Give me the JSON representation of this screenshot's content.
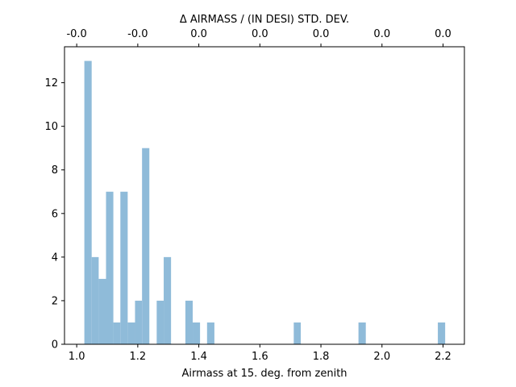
{
  "chart_data": {
    "type": "bar",
    "subtype": "histogram",
    "bar_color": "#8fbbd9",
    "xlabel": "Airmass at 15. deg. from zenith",
    "top_xlabel": "Δ AIRMASS / (IN DESI) STD. DEV.",
    "xlim": [
      0.96,
      2.27
    ],
    "ylim": [
      0,
      13.65
    ],
    "x_ticks": [
      1.0,
      1.2,
      1.4,
      1.6,
      1.8,
      2.0,
      2.2
    ],
    "x_tick_labels": [
      "1.0",
      "1.2",
      "1.4",
      "1.6",
      "1.8",
      "2.0",
      "2.2"
    ],
    "y_ticks": [
      0,
      2,
      4,
      6,
      8,
      10,
      12
    ],
    "y_tick_labels": [
      "0",
      "2",
      "4",
      "6",
      "8",
      "10",
      "12"
    ],
    "top_ticks": [
      1.0,
      1.2,
      1.4,
      1.6,
      1.8,
      2.0,
      2.2
    ],
    "top_tick_labels": [
      "-0.0",
      "-0.0",
      "0.0",
      "0.0",
      "0.0",
      "0.0",
      "0.0"
    ],
    "grid": false,
    "bins": [
      {
        "x0": 1.025,
        "x1": 1.049,
        "count": 13
      },
      {
        "x0": 1.049,
        "x1": 1.072,
        "count": 4
      },
      {
        "x0": 1.072,
        "x1": 1.096,
        "count": 3
      },
      {
        "x0": 1.096,
        "x1": 1.12,
        "count": 7
      },
      {
        "x0": 1.12,
        "x1": 1.143,
        "count": 1
      },
      {
        "x0": 1.143,
        "x1": 1.167,
        "count": 7
      },
      {
        "x0": 1.167,
        "x1": 1.191,
        "count": 1
      },
      {
        "x0": 1.191,
        "x1": 1.214,
        "count": 2
      },
      {
        "x0": 1.214,
        "x1": 1.238,
        "count": 9
      },
      {
        "x0": 1.262,
        "x1": 1.285,
        "count": 2
      },
      {
        "x0": 1.285,
        "x1": 1.309,
        "count": 4
      },
      {
        "x0": 1.356,
        "x1": 1.38,
        "count": 2
      },
      {
        "x0": 1.38,
        "x1": 1.404,
        "count": 1
      },
      {
        "x0": 1.427,
        "x1": 1.451,
        "count": 1
      },
      {
        "x0": 1.711,
        "x1": 1.734,
        "count": 1
      },
      {
        "x0": 1.923,
        "x1": 1.947,
        "count": 1
      },
      {
        "x0": 2.183,
        "x1": 2.207,
        "count": 1
      }
    ]
  }
}
